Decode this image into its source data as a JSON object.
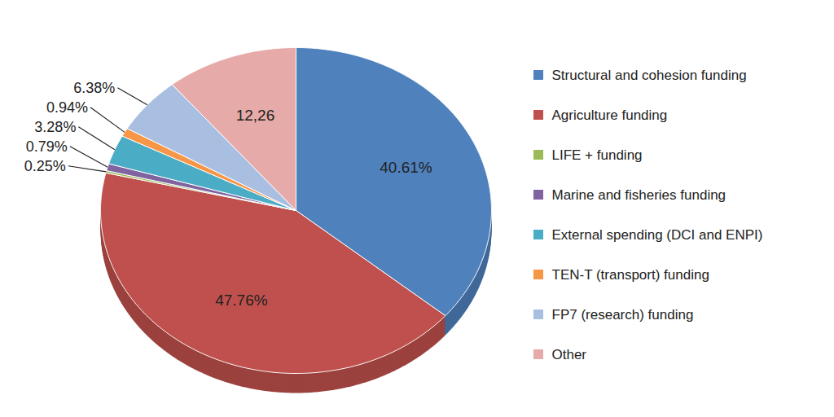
{
  "chart_data": {
    "type": "pie",
    "categories": [
      "Structural and cohesion funding",
      "Agriculture funding",
      "LIFE + funding",
      "Marine and fisheries funding",
      "External spending (DCI and ENPI)",
      "TEN-T (transport) funding",
      "FP7 (research) funding",
      "Other"
    ],
    "values": [
      40.61,
      47.76,
      0.25,
      0.79,
      3.28,
      0.94,
      6.38,
      12.26
    ],
    "value_labels": [
      "40.61%",
      "47.76%",
      "0.25%",
      "0.79%",
      "3.28%",
      "0.94%",
      "6.38%",
      "12,26"
    ],
    "colors": [
      "#4f81bd",
      "#c0504d",
      "#9bbb59",
      "#8064a2",
      "#4bacc6",
      "#f79646",
      "#a9bfe2",
      "#e6aaa8"
    ],
    "data_labels": true,
    "legend": "right"
  }
}
